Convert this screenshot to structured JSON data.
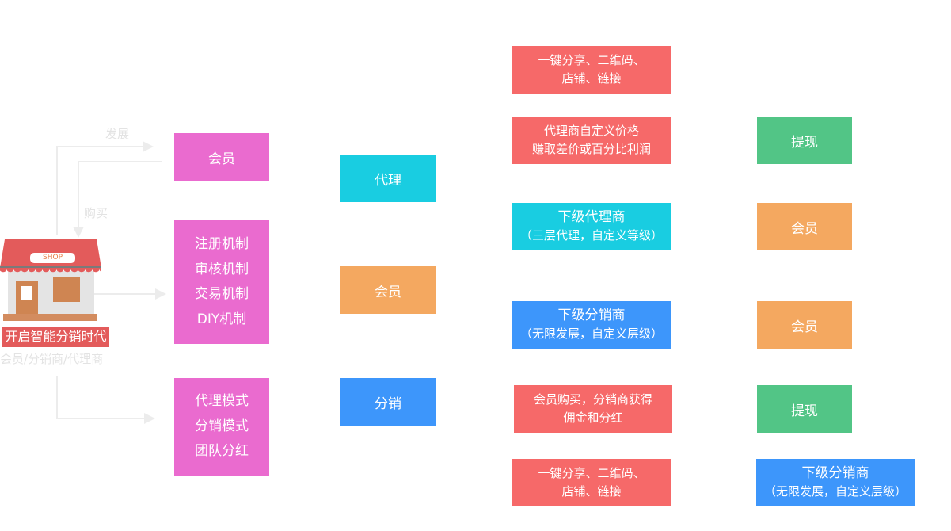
{
  "left": {
    "develop": "发展",
    "buy": "购买",
    "shop_sign": "SHOP",
    "slogan": "开启智能分销时代",
    "roles": "会员/分销商/代理商"
  },
  "col1": {
    "member": "会员",
    "mechanisms": [
      "注册机制",
      "审核机制",
      "交易机制",
      "DIY机制"
    ],
    "modes": [
      "代理模式",
      "分销模式",
      "团队分红"
    ]
  },
  "col2": {
    "agent": "代理",
    "member": "会员",
    "distribution": "分销"
  },
  "col3": [
    [
      "一键分享、二维码、",
      "店铺、链接"
    ],
    [
      "代理商自定义价格",
      "赚取差价或百分比利润"
    ],
    [
      "下级代理商",
      "（三层代理，自定义等级）"
    ],
    [
      "下级分销商",
      "（无限发展，自定义层级）"
    ],
    [
      "会员购买，分销商获得",
      "佣金和分红"
    ],
    [
      "一键分享、二维码、",
      "店铺、链接"
    ]
  ],
  "col4": [
    [
      "提现"
    ],
    [
      "会员"
    ],
    [
      "会员"
    ],
    [
      "提现"
    ],
    [
      "下级分销商",
      "（无限发展，自定义层级）"
    ]
  ],
  "colors": {
    "pink": "#ea6bcf",
    "cyan": "#19cde1",
    "orange": "#f4a860",
    "blue": "#3d96fb",
    "red": "#f66969",
    "green": "#52c586"
  }
}
